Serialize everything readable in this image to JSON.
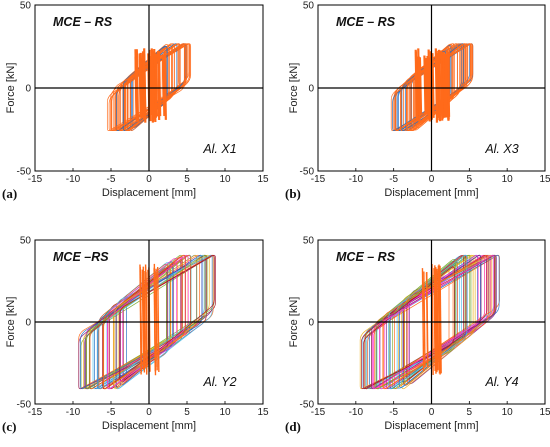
{
  "series_colors": [
    "#1f6fc4",
    "#d95319",
    "#edb120",
    "#7e2f8e",
    "#77ac30",
    "#4dbeee",
    "#a2142f",
    "#ff33cc",
    "#ff6a1a"
  ],
  "chart_data": [
    {
      "type": "line",
      "panel_label": "(a)",
      "case_label": "MCE – RS",
      "inner_label": "Al. X1",
      "xlabel": "Displacement [mm]",
      "ylabel": "Force [kN]",
      "xlim": [
        -15,
        15
      ],
      "ylim": [
        -50,
        50
      ],
      "xticks": [
        "-15",
        "-10",
        "-5",
        "0",
        "5",
        "10",
        "15"
      ],
      "yticks": [
        "50",
        "0",
        "-50"
      ],
      "grid": false,
      "loop_envelope": {
        "disp_max": 5.5,
        "disp_min": -5.5,
        "force_max": 28,
        "force_min": -27,
        "loops": 40
      }
    },
    {
      "type": "line",
      "panel_label": "(b)",
      "case_label": "MCE – RS",
      "inner_label": "Al. X3",
      "xlabel": "Displacement [mm]",
      "ylabel": "Force [kN]",
      "xlim": [
        -15,
        15
      ],
      "ylim": [
        -50,
        50
      ],
      "xticks": [
        "-15",
        "-10",
        "-5",
        "0",
        "5",
        "10",
        "15"
      ],
      "yticks": [
        "50",
        "0",
        "-50"
      ],
      "grid": false,
      "loop_envelope": {
        "disp_max": 5.5,
        "disp_min": -5.5,
        "force_max": 28,
        "force_min": -27,
        "loops": 40
      }
    },
    {
      "type": "line",
      "panel_label": "(c)",
      "case_label": "MCE –RS",
      "inner_label": "Al. Y2",
      "xlabel": "Displacement [mm]",
      "ylabel": "Force [kN]",
      "xlim": [
        -15,
        15
      ],
      "ylim": [
        -50,
        50
      ],
      "xticks": [
        "-15",
        "-10",
        "-5",
        "0",
        "5",
        "10",
        "15"
      ],
      "yticks": [
        "50",
        "0",
        "-50"
      ],
      "grid": false,
      "loop_envelope": {
        "disp_max": 9,
        "disp_min": -9.5,
        "force_max": 42,
        "force_min": -42,
        "loops": 45
      }
    },
    {
      "type": "line",
      "panel_label": "(d)",
      "case_label": "MCE – RS",
      "inner_label": "Al. Y4",
      "xlabel": "Displacement [mm]",
      "ylabel": "Force [kN]",
      "xlim": [
        -15,
        15
      ],
      "ylim": [
        -50,
        50
      ],
      "xticks": [
        "-15",
        "-10",
        "-5",
        "0",
        "5",
        "10",
        "15"
      ],
      "yticks": [
        "50",
        "0",
        "-50"
      ],
      "grid": false,
      "loop_envelope": {
        "disp_max": 9,
        "disp_min": -9.5,
        "force_max": 42,
        "force_min": -42,
        "loops": 45
      }
    }
  ]
}
